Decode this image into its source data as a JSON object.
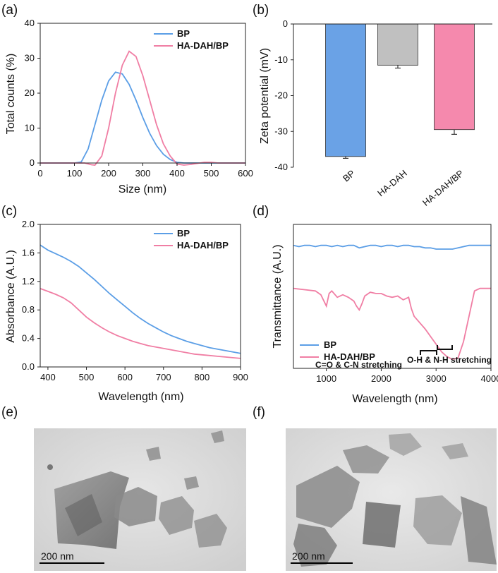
{
  "colors": {
    "bp_line": "#5b9ee6",
    "hadah_line": "#f07ea4",
    "bar_bp": "#6aa2e6",
    "bar_hadah": "#c0c0c0",
    "bar_hadahbp": "#f589ad"
  },
  "chart_data": [
    {
      "panel": "(a)",
      "type": "line",
      "xlabel": "Size (nm)",
      "ylabel": "Total counts (%)",
      "xlim": [
        0,
        600
      ],
      "ylim": [
        0,
        40
      ],
      "xticks": [
        "0",
        "100",
        "200",
        "300",
        "400",
        "500",
        "600"
      ],
      "yticks": [
        "0",
        "10",
        "20",
        "30",
        "40"
      ],
      "legend": [
        "BP",
        "HA-DAH/BP"
      ],
      "series": [
        {
          "name": "BP",
          "x": [
            0,
            100,
            120,
            140,
            160,
            180,
            200,
            220,
            240,
            260,
            280,
            300,
            320,
            340,
            360,
            380,
            400,
            420,
            440,
            460,
            480,
            500,
            520,
            540,
            560,
            580,
            600
          ],
          "y": [
            0,
            0,
            0.3,
            4,
            11,
            18,
            23.5,
            26,
            25.5,
            22.5,
            18,
            13,
            8.5,
            5,
            2.5,
            1,
            0.2,
            0,
            0,
            0,
            0,
            0,
            0,
            0,
            0,
            0,
            0
          ]
        },
        {
          "name": "HA-DAH/BP",
          "x": [
            0,
            130,
            150,
            160,
            180,
            200,
            220,
            240,
            260,
            280,
            300,
            320,
            340,
            360,
            380,
            400,
            420,
            440,
            460,
            480,
            500,
            520,
            540,
            560,
            580,
            600
          ],
          "y": [
            0,
            0,
            -0.5,
            -0.6,
            2,
            10,
            20,
            28,
            32,
            30.5,
            25,
            18,
            11,
            5.5,
            2,
            -0.3,
            -0.6,
            -0.4,
            -0.1,
            0.2,
            0.2,
            0,
            0,
            0,
            0,
            0
          ]
        }
      ]
    },
    {
      "panel": "(b)",
      "type": "bar",
      "ylabel": "Zeta potential (mV)",
      "ylim": [
        -40,
        0
      ],
      "yticks": [
        "0",
        "-10",
        "-20",
        "-30",
        "-40"
      ],
      "categories": [
        "BP",
        "HA-DAH",
        "HA-DAH/BP"
      ],
      "values": [
        -37,
        -11.5,
        -29.5
      ],
      "errors": [
        0.5,
        0.8,
        1.3
      ]
    },
    {
      "panel": "(c)",
      "type": "line",
      "xlabel": "Wavelength (nm)",
      "ylabel": "Absorbance (A.U.)",
      "xlim": [
        380,
        900
      ],
      "ylim": [
        0,
        2.0
      ],
      "xticks": [
        "400",
        "500",
        "600",
        "700",
        "800",
        "900"
      ],
      "yticks": [
        "0.0",
        "0.4",
        "0.8",
        "1.2",
        "1.6",
        "2.0"
      ],
      "legend": [
        "BP",
        "HA-DAH/BP"
      ],
      "series": [
        {
          "name": "BP",
          "x": [
            380,
            400,
            420,
            440,
            460,
            480,
            500,
            520,
            540,
            560,
            580,
            600,
            620,
            640,
            660,
            680,
            700,
            720,
            740,
            760,
            780,
            800,
            820,
            840,
            860,
            880,
            900
          ],
          "y": [
            1.71,
            1.64,
            1.59,
            1.54,
            1.48,
            1.41,
            1.32,
            1.23,
            1.13,
            1.03,
            0.94,
            0.85,
            0.76,
            0.68,
            0.61,
            0.55,
            0.49,
            0.44,
            0.4,
            0.36,
            0.33,
            0.3,
            0.27,
            0.25,
            0.23,
            0.21,
            0.19
          ]
        },
        {
          "name": "HA-DAH/BP",
          "x": [
            380,
            400,
            420,
            440,
            460,
            480,
            500,
            520,
            540,
            560,
            580,
            600,
            620,
            640,
            660,
            680,
            700,
            720,
            740,
            760,
            780,
            800,
            820,
            840,
            860,
            880,
            900
          ],
          "y": [
            1.1,
            1.06,
            1.02,
            0.97,
            0.9,
            0.8,
            0.7,
            0.62,
            0.55,
            0.49,
            0.44,
            0.4,
            0.36,
            0.33,
            0.3,
            0.28,
            0.26,
            0.24,
            0.22,
            0.2,
            0.18,
            0.17,
            0.16,
            0.15,
            0.14,
            0.13,
            0.12
          ]
        }
      ]
    },
    {
      "panel": "(d)",
      "type": "line",
      "xlabel": "Wavelength (nm)",
      "ylabel": "Transmittance (A.U.)",
      "xlim": [
        400,
        4000
      ],
      "xticks": [
        "1000",
        "2000",
        "3000",
        "4000"
      ],
      "legend": [
        "BP",
        "HA-DAH/BP"
      ],
      "annotations": [
        "C=O & C-N stretching",
        "O-H & N-H stretching"
      ],
      "series": [
        {
          "name": "BP",
          "x": [
            400,
            500,
            600,
            700,
            800,
            900,
            1000,
            1100,
            1200,
            1300,
            1400,
            1500,
            1600,
            1700,
            1800,
            1900,
            2000,
            2100,
            2200,
            2300,
            2400,
            2500,
            2600,
            2700,
            2800,
            2900,
            3000,
            3100,
            3200,
            3300,
            3400,
            3500,
            3600,
            3700,
            3800,
            3900,
            4000
          ],
          "y": [
            0.96,
            0.95,
            0.96,
            0.96,
            0.95,
            0.96,
            0.96,
            0.95,
            0.96,
            0.95,
            0.96,
            0.96,
            0.94,
            0.95,
            0.96,
            0.96,
            0.95,
            0.96,
            0.96,
            0.95,
            0.96,
            0.96,
            0.95,
            0.95,
            0.94,
            0.94,
            0.93,
            0.93,
            0.93,
            0.93,
            0.94,
            0.95,
            0.96,
            0.96,
            0.96,
            0.96,
            0.96
          ]
        },
        {
          "name": "HA-DAH/BP",
          "x": [
            400,
            600,
            800,
            900,
            1000,
            1050,
            1100,
            1200,
            1300,
            1400,
            1500,
            1550,
            1600,
            1650,
            1700,
            1800,
            1900,
            2000,
            2100,
            2200,
            2300,
            2400,
            2500,
            2550,
            2600,
            2700,
            2800,
            2900,
            3000,
            3100,
            3200,
            3300,
            3400,
            3500,
            3600,
            3700,
            3800,
            3900,
            4000
          ],
          "y": [
            0.62,
            0.61,
            0.6,
            0.57,
            0.48,
            0.58,
            0.6,
            0.55,
            0.57,
            0.55,
            0.52,
            0.48,
            0.45,
            0.5,
            0.56,
            0.59,
            0.58,
            0.58,
            0.56,
            0.55,
            0.56,
            0.53,
            0.55,
            0.46,
            0.4,
            0.35,
            0.3,
            0.24,
            0.18,
            0.12,
            0.08,
            0.06,
            0.07,
            0.2,
            0.4,
            0.6,
            0.62,
            0.62,
            0.62
          ]
        }
      ]
    }
  ],
  "panels": {
    "a": "(a)",
    "b": "(b)",
    "c": "(c)",
    "d": "(d)",
    "e": "(e)",
    "f": "(f)"
  },
  "tem": {
    "scale_e": "200 nm",
    "scale_f": "200 nm"
  }
}
